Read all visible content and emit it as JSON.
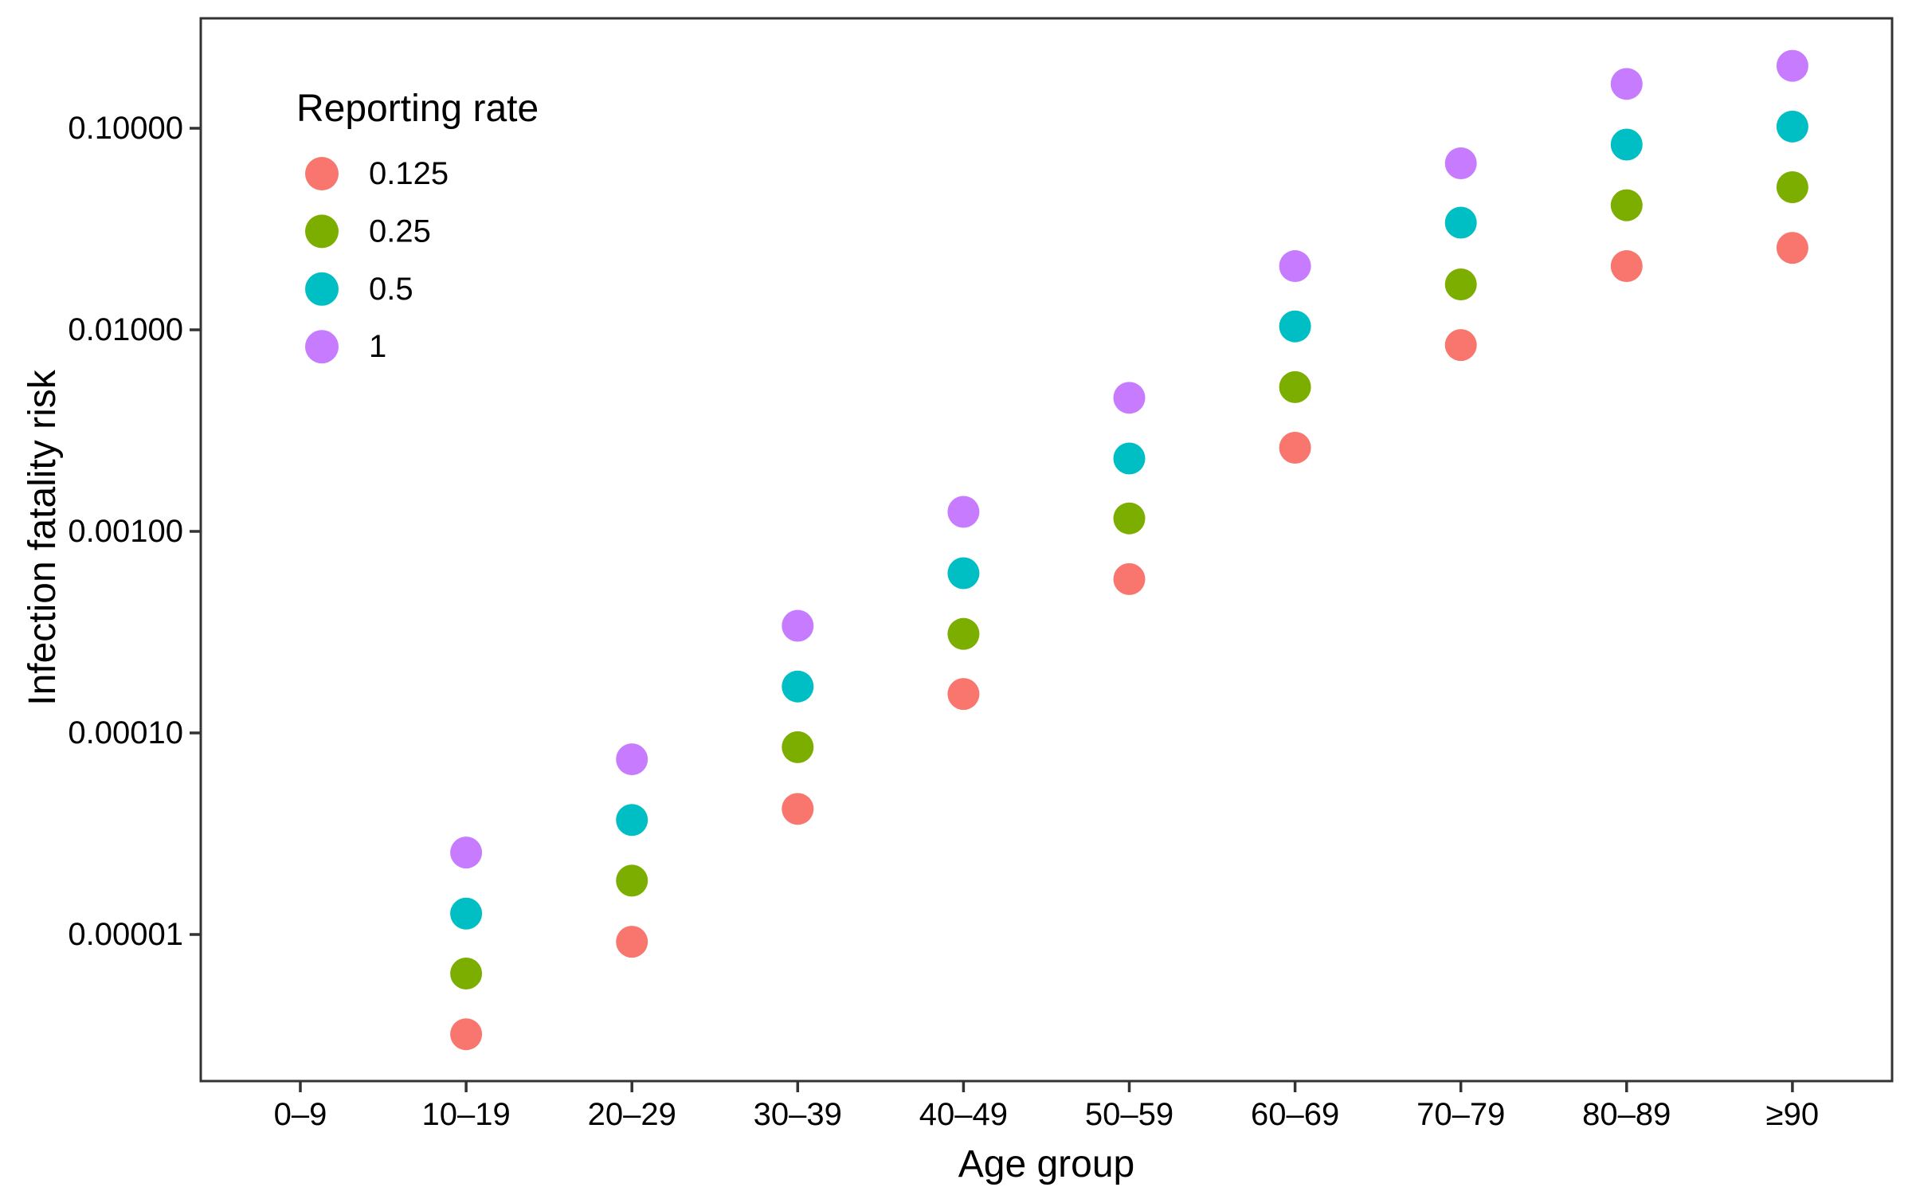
{
  "chart_data": {
    "type": "scatter",
    "title": "",
    "xlabel": "Age group",
    "ylabel": "Infection fatality risk",
    "yscale": "log",
    "ylim": [
      2e-06,
      0.35
    ],
    "grid": false,
    "categories": [
      "0–9",
      "10–19",
      "20–29",
      "30–39",
      "40–49",
      "50–59",
      "60–69",
      "70–79",
      "80–89",
      "≥90"
    ],
    "y_ticks": [
      {
        "label": "0.10000",
        "value": 0.1
      },
      {
        "label": "0.01000",
        "value": 0.01
      },
      {
        "label": "0.00100",
        "value": 0.001
      },
      {
        "label": "0.00010",
        "value": 0.0001
      },
      {
        "label": "0.00001",
        "value": 1e-05
      }
    ],
    "legend_title": "Reporting rate",
    "legend_position": "inside-top-left",
    "series": [
      {
        "name": "0.125",
        "color": "#F8766D",
        "values": [
          null,
          3.2e-06,
          9.2e-06,
          4.2e-05,
          0.000156,
          0.00058,
          0.0026,
          0.0084,
          0.0207,
          0.0255
        ]
      },
      {
        "name": "0.25",
        "color": "#7CAE00",
        "values": [
          null,
          6.4e-06,
          1.85e-05,
          8.5e-05,
          0.00031,
          0.00116,
          0.0052,
          0.0168,
          0.0415,
          0.051
        ]
      },
      {
        "name": "0.5",
        "color": "#00BFC4",
        "values": [
          null,
          1.27e-05,
          3.7e-05,
          0.00017,
          0.00062,
          0.0023,
          0.0104,
          0.034,
          0.083,
          0.102
        ]
      },
      {
        "name": "1",
        "color": "#C77CFF",
        "values": [
          null,
          2.55e-05,
          7.4e-05,
          0.00034,
          0.00125,
          0.0046,
          0.0207,
          0.067,
          0.166,
          0.204
        ]
      }
    ]
  },
  "colors": {
    "panel_border": "#333333",
    "tick": "#333333",
    "text": "#000000",
    "background": "#FFFFFF"
  }
}
